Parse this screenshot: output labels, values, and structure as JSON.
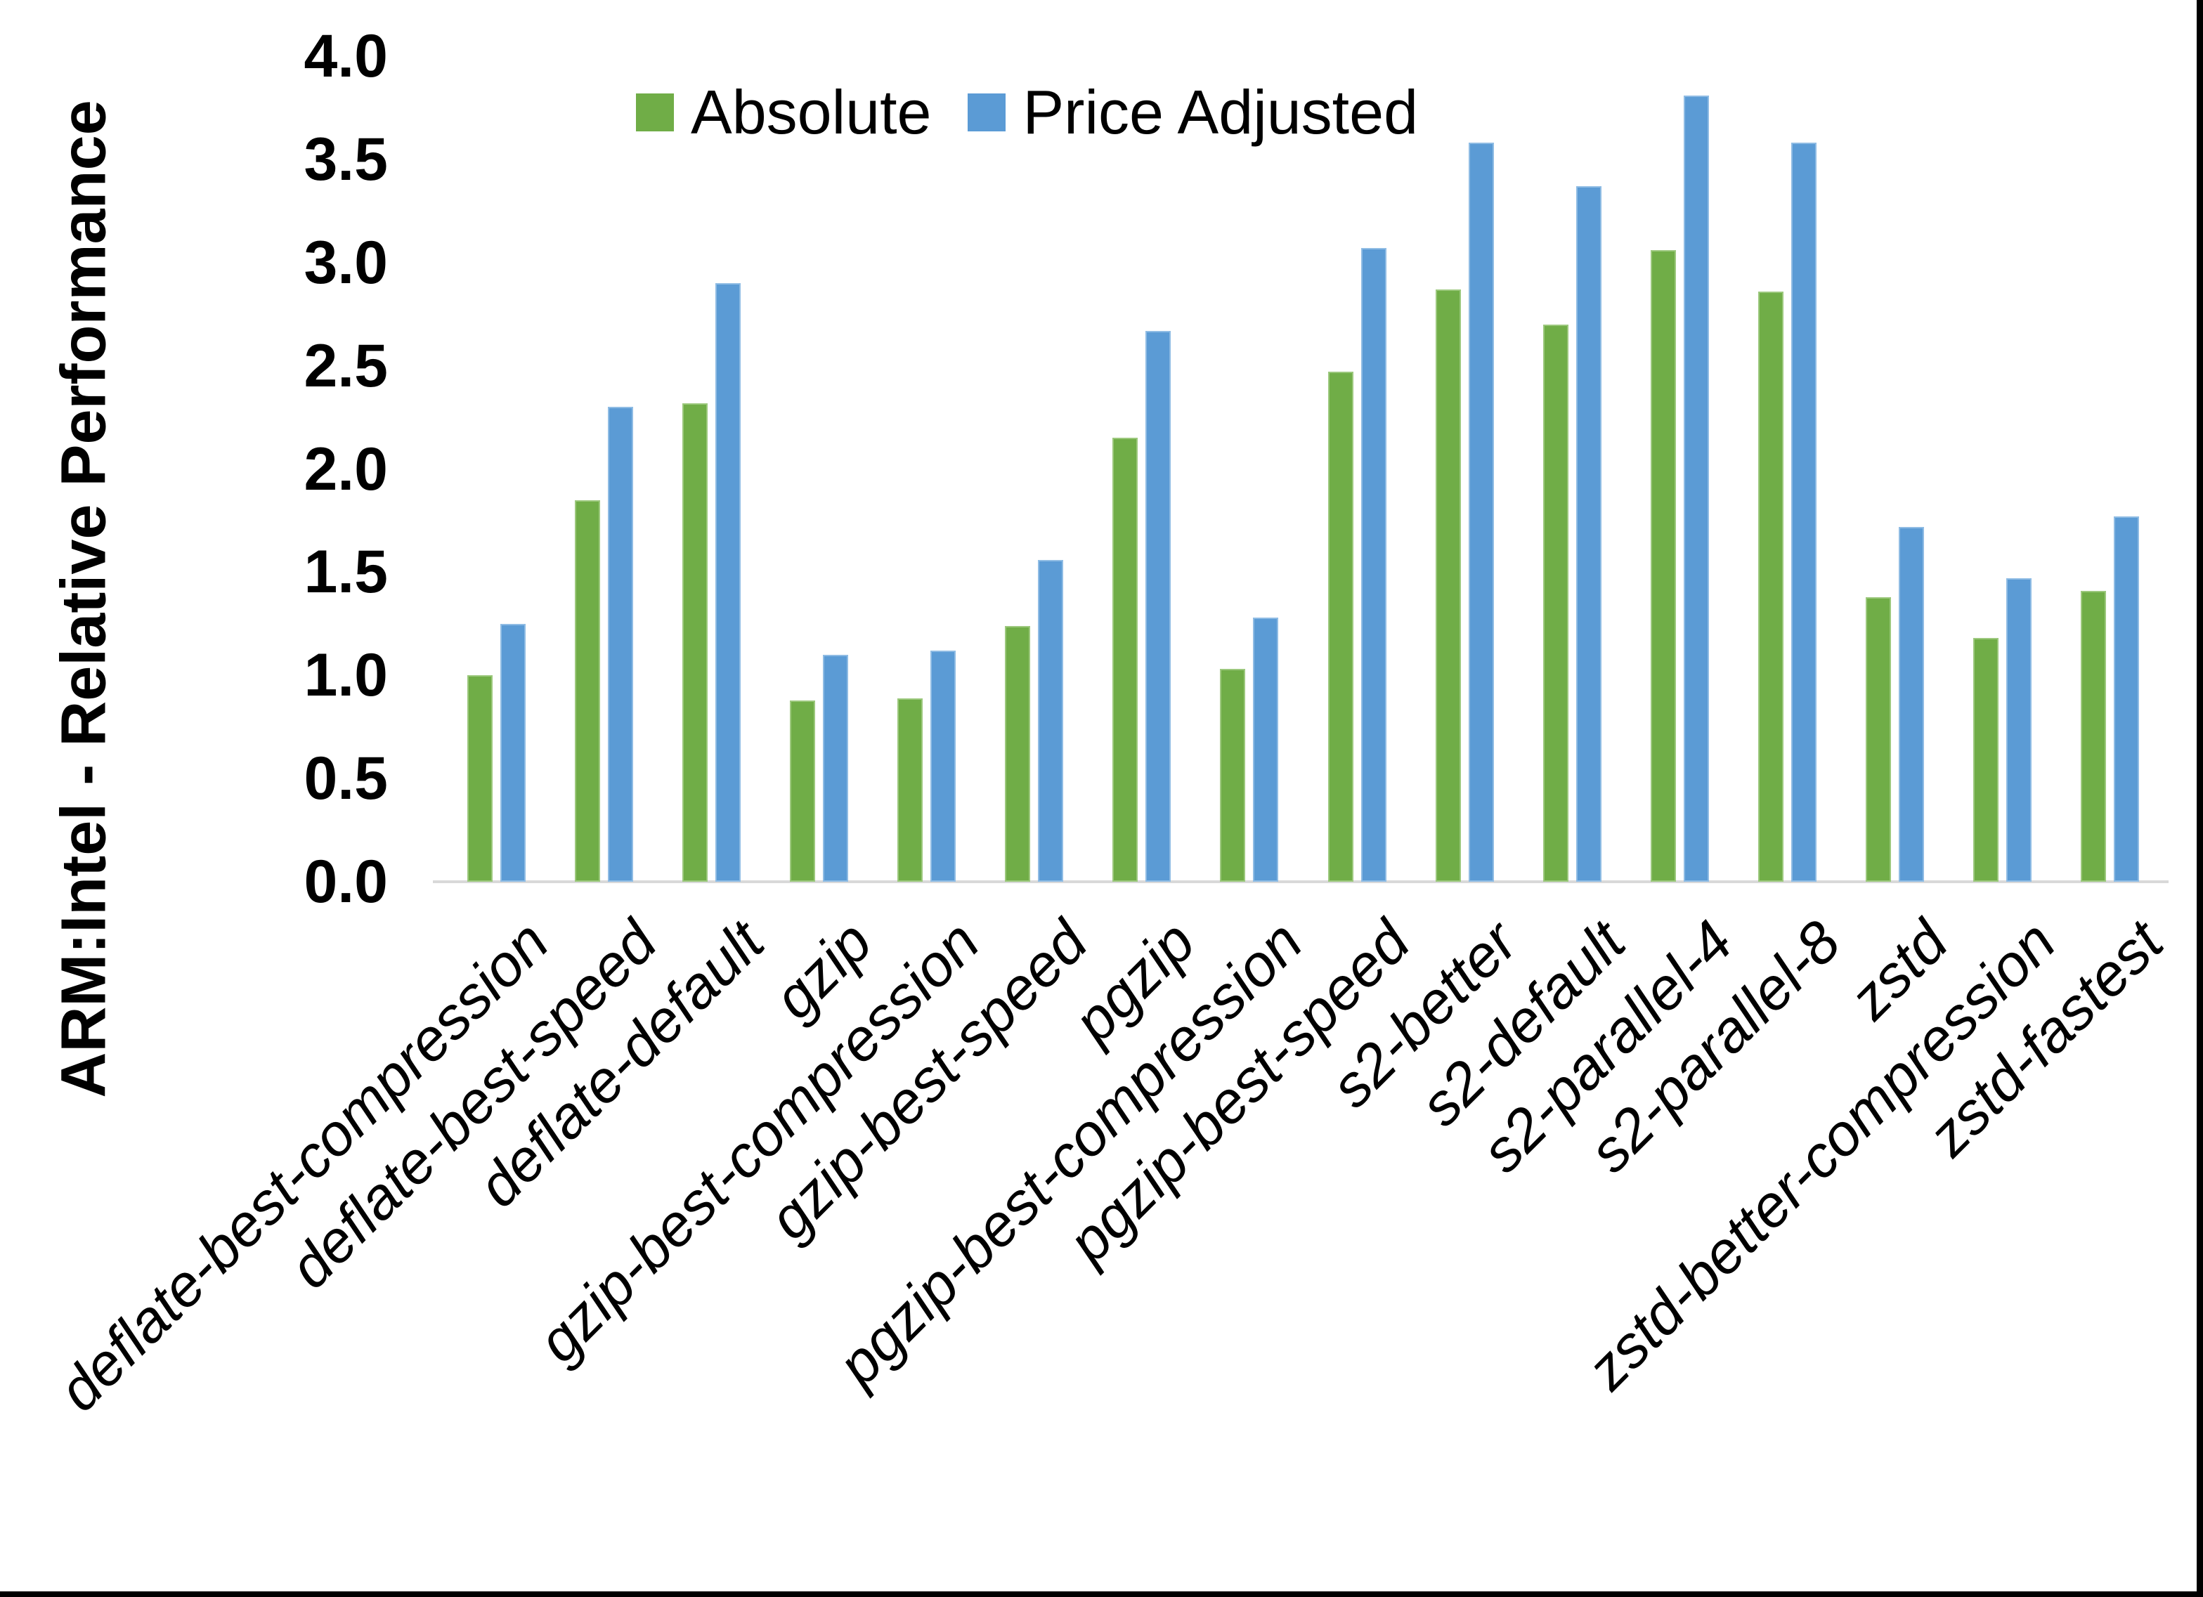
{
  "chart_data": {
    "type": "bar",
    "title": "",
    "xlabel": "",
    "ylabel": "ARM:Intel - Relative Performance",
    "ylim": [
      0.0,
      4.0
    ],
    "ytick_step": 0.5,
    "ytick_labels": [
      "0.0",
      "0.5",
      "1.0",
      "1.5",
      "2.0",
      "2.5",
      "3.0",
      "3.5",
      "4.0"
    ],
    "grid": false,
    "legend_position": "top-center",
    "axis_line_color": "#d9d9d9",
    "categories": [
      "deflate-best-compression",
      "deflate-best-speed",
      "deflate-default",
      "gzip",
      "gzip-best-compression",
      "gzip-best-speed",
      "pgzip",
      "pgzip-best-compression",
      "pgzip-best-speed",
      "s2-better",
      "s2-default",
      "s2-parallel-4",
      "s2-parallel-8",
      "zstd",
      "zstd-better-compression",
      "zstd-fastest"
    ],
    "series": [
      {
        "name": "Absolute",
        "color": "#70ad47",
        "values": [
          1.0,
          1.85,
          2.32,
          0.88,
          0.89,
          1.24,
          2.15,
          1.03,
          2.47,
          2.87,
          2.7,
          3.06,
          2.86,
          1.38,
          1.18,
          1.41
        ]
      },
      {
        "name": "Price Adjusted",
        "color": "#5b9bd5",
        "values": [
          1.25,
          2.3,
          2.9,
          1.1,
          1.12,
          1.56,
          2.67,
          1.28,
          3.07,
          3.58,
          3.37,
          3.81,
          3.58,
          1.72,
          1.47,
          1.77
        ]
      }
    ]
  },
  "frame": {
    "right_border_color": "#000000",
    "bottom_border_color": "#000000"
  }
}
